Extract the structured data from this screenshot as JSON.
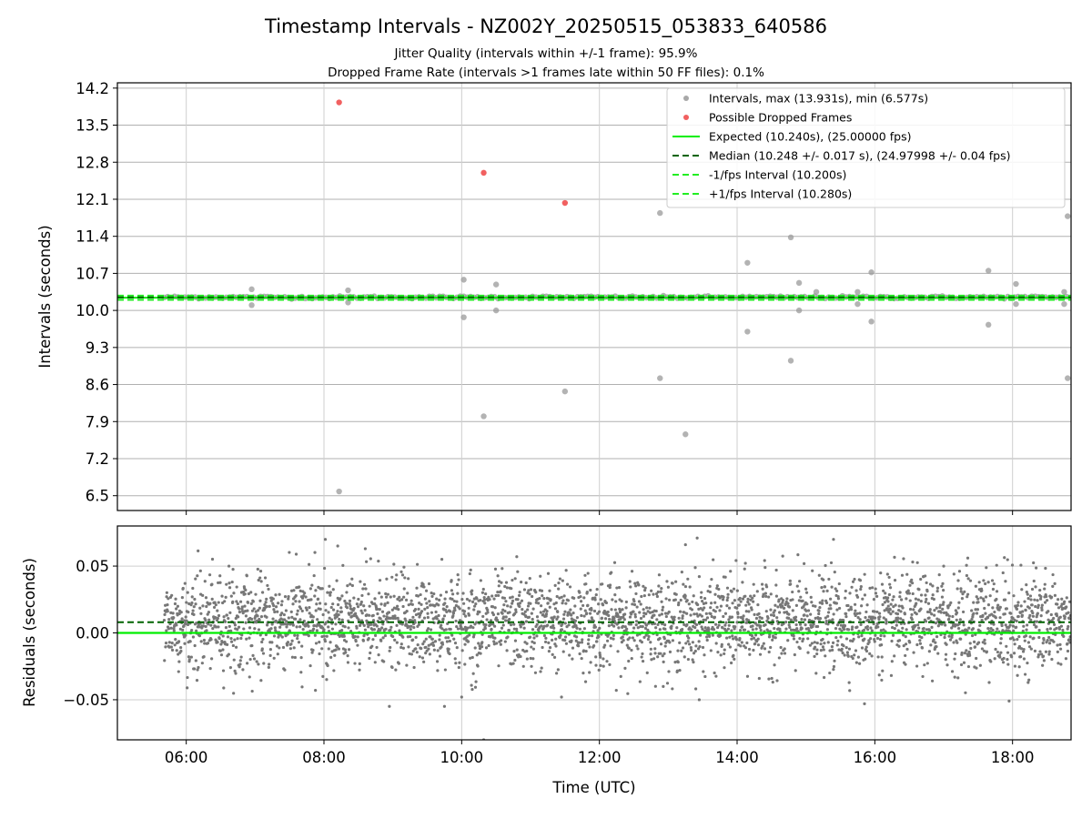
{
  "chart_data": [
    {
      "type": "scatter",
      "title": "Timestamp Intervals - NZ002Y_20250515_053833_640586",
      "subtitle_lines": [
        "Jitter Quality (intervals within +/-1 frame): 95.9%",
        "Dropped Frame Rate (intervals >1 frames late within 50 FF files): 0.1%"
      ],
      "ylabel": "Intervals (seconds)",
      "xlabel": "",
      "xlim": [
        5.0,
        18.85
      ],
      "ylim": [
        6.22,
        14.3
      ],
      "yticks": [
        "6.5",
        "7.2",
        "7.9",
        "8.6",
        "9.3",
        "10.0",
        "10.7",
        "11.4",
        "12.1",
        "12.8",
        "13.5",
        "14.2"
      ],
      "grid": true,
      "legend_position": "top-right",
      "legend": [
        "Intervals, max (13.931s), min (6.577s)",
        "Possible Dropped Frames",
        "Expected (10.240s), (25.00000 fps)",
        "Median (10.248 +/- 0.017 s), (24.97998 +/- 0.04 fps)",
        "-1/fps Interval (10.200s)",
        "+1/fps Interval (10.280s)"
      ],
      "colors": {
        "intervals": "#999999",
        "dropped": "#ee4444",
        "expected": "#00ee00",
        "median": "#006400",
        "fps_bounds": "#22ee22"
      },
      "reference_lines": {
        "expected": 10.24,
        "median": 10.248,
        "minus_one_fps": 10.2,
        "plus_one_fps": 10.28
      },
      "band_time_range": [
        5.68,
        18.85
      ],
      "outliers": [
        {
          "t": 6.95,
          "v": 10.4
        },
        {
          "t": 6.95,
          "v": 10.1
        },
        {
          "t": 8.22,
          "v": 6.58
        },
        {
          "t": 8.35,
          "v": 10.38
        },
        {
          "t": 8.35,
          "v": 10.15
        },
        {
          "t": 10.03,
          "v": 10.58
        },
        {
          "t": 10.03,
          "v": 9.87
        },
        {
          "t": 10.32,
          "v": 8.0
        },
        {
          "t": 10.5,
          "v": 10.49
        },
        {
          "t": 10.5,
          "v": 10.0
        },
        {
          "t": 11.5,
          "v": 8.47
        },
        {
          "t": 12.88,
          "v": 11.84
        },
        {
          "t": 12.88,
          "v": 8.72
        },
        {
          "t": 13.25,
          "v": 7.66
        },
        {
          "t": 14.15,
          "v": 10.9
        },
        {
          "t": 14.15,
          "v": 9.6
        },
        {
          "t": 14.78,
          "v": 11.38
        },
        {
          "t": 14.78,
          "v": 9.05
        },
        {
          "t": 14.9,
          "v": 10.52
        },
        {
          "t": 14.9,
          "v": 10.0
        },
        {
          "t": 15.15,
          "v": 10.35
        },
        {
          "t": 15.75,
          "v": 10.35
        },
        {
          "t": 15.75,
          "v": 10.12
        },
        {
          "t": 15.95,
          "v": 10.72
        },
        {
          "t": 15.95,
          "v": 9.79
        },
        {
          "t": 17.65,
          "v": 10.75
        },
        {
          "t": 17.65,
          "v": 9.73
        },
        {
          "t": 18.05,
          "v": 10.5
        },
        {
          "t": 18.05,
          "v": 10.12
        },
        {
          "t": 18.75,
          "v": 10.35
        },
        {
          "t": 18.75,
          "v": 10.12
        },
        {
          "t": 18.8,
          "v": 11.78
        },
        {
          "t": 18.8,
          "v": 8.72
        }
      ],
      "dropped_frames": [
        {
          "t": 8.22,
          "v": 13.93
        },
        {
          "t": 10.32,
          "v": 12.6
        },
        {
          "t": 11.5,
          "v": 12.03
        }
      ]
    },
    {
      "type": "scatter",
      "ylabel": "Residuals (seconds)",
      "xlabel": "Time (UTC)",
      "xlim": [
        5.0,
        18.85
      ],
      "ylim": [
        -0.08,
        0.08
      ],
      "yticks": [
        "−0.05",
        "0.00",
        "0.05"
      ],
      "xticks": [
        "06:00",
        "08:00",
        "10:00",
        "12:00",
        "14:00",
        "16:00",
        "18:00"
      ],
      "grid": true,
      "reference_lines": {
        "expected": 0.0,
        "median": 0.008
      },
      "residual_center": 0.008,
      "residual_spread": 0.017,
      "time_range": [
        5.68,
        18.85
      ],
      "outliers": [
        {
          "t": 6.62,
          "v": 0.05
        },
        {
          "t": 7.1,
          "v": 0.0
        },
        {
          "t": 8.02,
          "v": 0.07
        },
        {
          "t": 8.2,
          "v": 0.065
        },
        {
          "t": 8.6,
          "v": 0.063
        },
        {
          "t": 8.95,
          "v": -0.055
        },
        {
          "t": 9.75,
          "v": -0.055
        },
        {
          "t": 10.0,
          "v": -0.048
        },
        {
          "t": 10.32,
          "v": -0.08
        },
        {
          "t": 10.8,
          "v": 0.057
        },
        {
          "t": 11.45,
          "v": -0.048
        },
        {
          "t": 13.25,
          "v": 0.066
        },
        {
          "t": 13.42,
          "v": 0.071
        },
        {
          "t": 13.45,
          "v": -0.05
        },
        {
          "t": 15.4,
          "v": 0.07
        },
        {
          "t": 15.85,
          "v": -0.053
        },
        {
          "t": 16.55,
          "v": 0.053
        },
        {
          "t": 17.0,
          "v": 0.05
        },
        {
          "t": 17.35,
          "v": 0.056
        },
        {
          "t": 17.95,
          "v": -0.051
        }
      ],
      "colors": {
        "points": "#777777",
        "expected": "#00ee00",
        "median": "#006400"
      }
    }
  ]
}
